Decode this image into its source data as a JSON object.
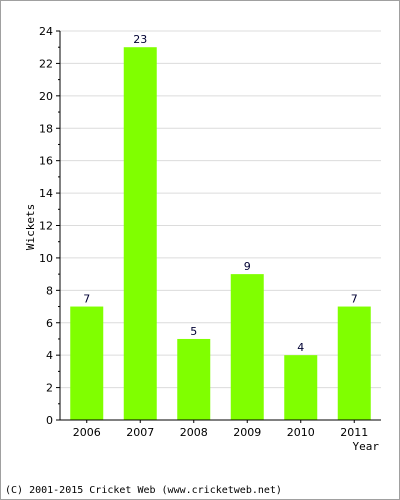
{
  "chart_data": {
    "type": "bar",
    "categories": [
      "2006",
      "2007",
      "2008",
      "2009",
      "2010",
      "2011"
    ],
    "values": [
      7,
      23,
      5,
      9,
      4,
      7
    ],
    "title": "",
    "xlabel": "Year",
    "ylabel": "Wickets",
    "ylim": [
      0,
      24
    ],
    "yticks": [
      0,
      2,
      4,
      6,
      8,
      10,
      12,
      14,
      16,
      18,
      20,
      22,
      24
    ],
    "grid": true,
    "bar_color": "#80ff00",
    "data_labels": true
  },
  "footer": {
    "copyright": "(C) 2001-2015 Cricket Web (www.cricketweb.net)"
  }
}
